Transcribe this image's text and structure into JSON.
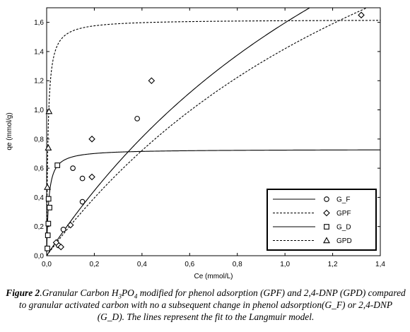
{
  "chart_data": {
    "type": "scatter",
    "xlabel": "Ce (mmol/L)",
    "ylabel": "qe (mmol/g)",
    "xlim": [
      0,
      1.4
    ],
    "ylim": [
      0,
      1.7
    ],
    "x_ticks": [
      0,
      0.2,
      0.4,
      0.6,
      0.8,
      1.0,
      1.2,
      1.4
    ],
    "y_ticks": [
      0,
      0.2,
      0.4,
      0.6,
      0.8,
      1.0,
      1.2,
      1.4,
      1.6
    ],
    "x_tick_labels": [
      "0,0",
      "0,2",
      "0,4",
      "0,6",
      "0,8",
      "1,0",
      "1,2",
      "1,4"
    ],
    "y_tick_labels": [
      "0,0",
      "0,2",
      "0,4",
      "0,6",
      "0,8",
      "1,0",
      "1,2",
      "1,4",
      "1,6"
    ],
    "legend_position": "bottom-right",
    "series": [
      {
        "name": "G_F",
        "marker": "circle",
        "line_style": "solid",
        "points": [
          [
            0.05,
            0.07
          ],
          [
            0.07,
            0.18
          ],
          [
            0.11,
            0.6
          ],
          [
            0.15,
            0.37
          ],
          [
            0.15,
            0.53
          ],
          [
            0.38,
            0.94
          ]
        ],
        "fit": {
          "model": "langmuir",
          "qmax": 4.5,
          "K": 0.55
        }
      },
      {
        "name": "GPF",
        "marker": "diamond",
        "line_style": "dashed",
        "points": [
          [
            0.04,
            0.09
          ],
          [
            0.06,
            0.06
          ],
          [
            0.1,
            0.21
          ],
          [
            0.19,
            0.8
          ],
          [
            0.19,
            0.54
          ],
          [
            0.44,
            1.2
          ],
          [
            1.32,
            1.65
          ]
        ],
        "fit": {
          "model": "langmuir",
          "qmax": 4.0,
          "K": 0.55
        }
      },
      {
        "name": "G_D",
        "marker": "square",
        "line_style": "solid",
        "points": [
          [
            0.003,
            0.05
          ],
          [
            0.005,
            0.14
          ],
          [
            0.007,
            0.22
          ],
          [
            0.008,
            0.39
          ],
          [
            0.012,
            0.33
          ],
          [
            0.045,
            0.62
          ]
        ],
        "fit": {
          "model": "langmuir",
          "qmax": 0.73,
          "K": 120
        }
      },
      {
        "name": "GPD",
        "marker": "triangle",
        "line_style": "dashed",
        "points": [
          [
            0.003,
            0.47
          ],
          [
            0.007,
            0.74
          ],
          [
            0.01,
            0.99
          ]
        ],
        "fit": {
          "model": "langmuir",
          "qmax": 1.62,
          "K": 180
        }
      }
    ]
  },
  "caption": {
    "lead": "Figure 2",
    "text_a": ".Granular Carbon H",
    "sub_3": "3",
    "text_b": "PO",
    "sub_4": "4",
    "text_c": " modified for phenol adsorption (GPF) and 2,4-DNP (GPD) compared to granular activated carbon with no a subsequent change in phenol adsorption(G_F) or 2,4-DNP (G_D). The lines represent the fit to the Langmuir model."
  }
}
